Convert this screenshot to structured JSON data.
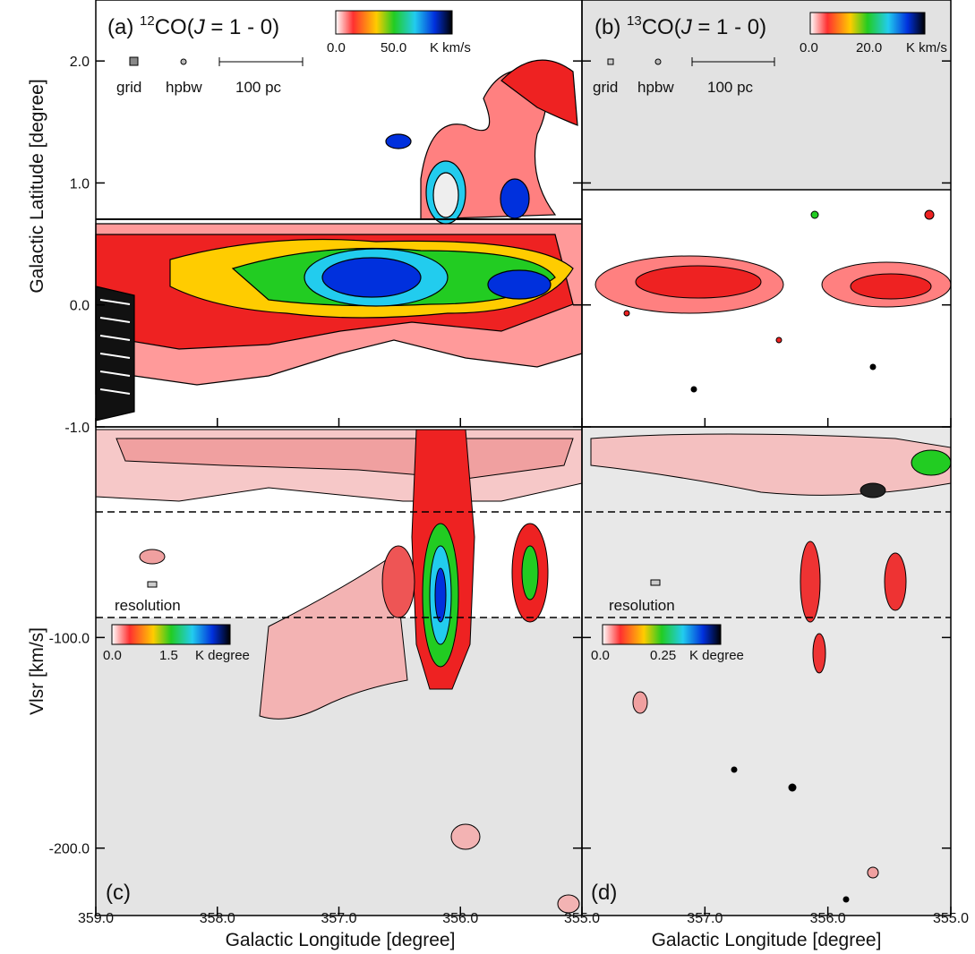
{
  "panels": [
    {
      "label": "(a)",
      "isotope": "12",
      "molecule": "CO(",
      "j": "J",
      "transition": "= 1 - 0)",
      "colorbar": {
        "min": "0.0",
        "mid": "50.0",
        "unit": "K km/s"
      },
      "legend": {
        "grid": "grid",
        "hpbw": "hpbw",
        "scale": "100 pc"
      }
    },
    {
      "label": "(b)",
      "isotope": "13",
      "molecule": "CO(",
      "j": "J",
      "transition": "= 1 - 0)",
      "colorbar": {
        "min": "0.0",
        "mid": "20.0",
        "unit": "K km/s"
      },
      "legend": {
        "grid": "grid",
        "hpbw": "hpbw",
        "scale": "100 pc"
      }
    },
    {
      "label": "(c)",
      "resolution": "resolution",
      "colorbar": {
        "min": "0.0",
        "mid": "1.5",
        "unit": "K degree"
      }
    },
    {
      "label": "(d)",
      "resolution": "resolution",
      "colorbar": {
        "min": "0.0",
        "mid": "0.25",
        "unit": "K degree"
      }
    }
  ],
  "axes": {
    "latitude": {
      "label": "Galactic Latitude [degree]",
      "lim": [
        -1.0,
        2.5
      ],
      "ticks": [
        {
          "value": 2,
          "label": "2.0"
        },
        {
          "value": 1,
          "label": "1.0"
        },
        {
          "value": 0,
          "label": "0.0"
        },
        {
          "value": -1,
          "label": "-1.0"
        }
      ]
    },
    "velocity": {
      "label": "Vlsr [km/s]",
      "lim": [
        -232,
        0
      ],
      "ticks": [
        {
          "value": -100,
          "label": "-100.0"
        },
        {
          "value": -200,
          "label": "-200.0"
        }
      ]
    },
    "longitude_c": {
      "label": "Galactic Longitude [degree]",
      "lim": [
        359,
        355
      ],
      "ticks": [
        {
          "value": 359,
          "label": "359.0"
        },
        {
          "value": 358,
          "label": "358.0"
        },
        {
          "value": 357,
          "label": "357.0"
        },
        {
          "value": 356,
          "label": "356.0"
        },
        {
          "value": 355,
          "label": "355.0"
        }
      ]
    },
    "longitude_d": {
      "label": "Galactic Longitude [degree]",
      "lim": [
        358,
        355
      ],
      "ticks": [
        {
          "value": 357,
          "label": "357.0"
        },
        {
          "value": 356,
          "label": "356.0"
        },
        {
          "value": 355,
          "label": "355.0"
        }
      ]
    }
  }
}
